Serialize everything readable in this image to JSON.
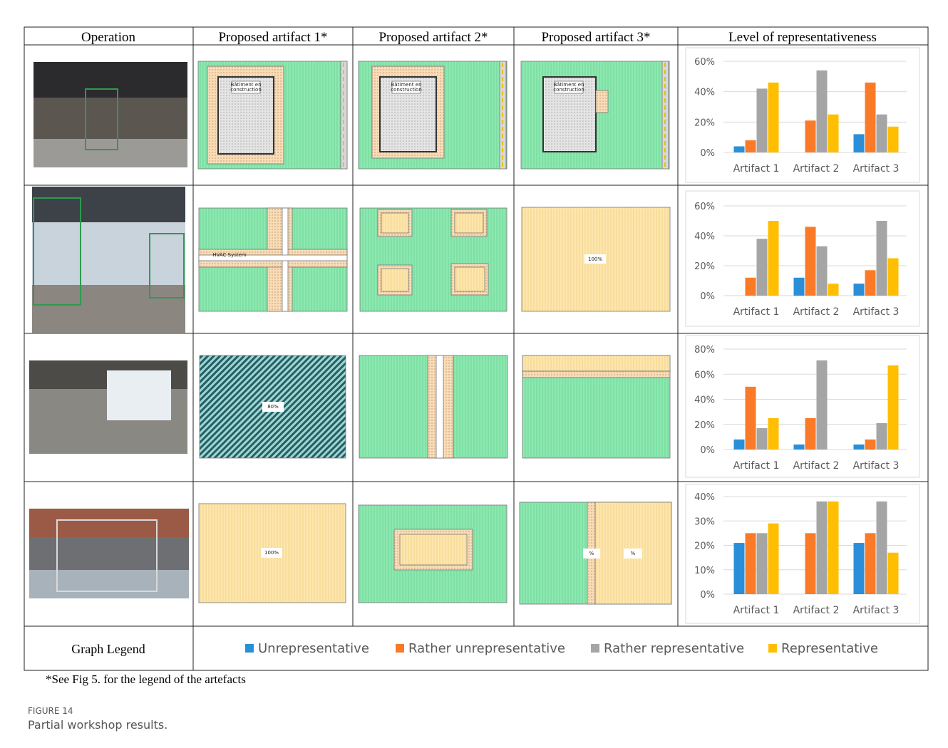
{
  "table": {
    "header": [
      "Operation",
      "Proposed artifact 1*",
      "Proposed artifact 2*",
      "Proposed artifact 3*",
      "Level of representativeness"
    ],
    "rows": [
      {
        "plans": [
          [
            "Bâtiment en",
            "construction"
          ],
          [
            "Bâtiment en",
            "construction"
          ],
          [
            "Bâtiment en",
            "construction"
          ]
        ]
      },
      {
        "plans": [
          [
            "HVAC System"
          ],
          [],
          [
            "100%"
          ]
        ]
      },
      {
        "plans": [
          [
            "80%"
          ],
          [],
          []
        ]
      },
      {
        "plans": [
          [
            "100%"
          ],
          [],
          [
            "%",
            "%"
          ]
        ]
      }
    ]
  },
  "legend": {
    "title": "Graph Legend",
    "items": [
      {
        "name": "Unrepresentative",
        "color": "#2a8fd8"
      },
      {
        "name": "Rather unrepresentative",
        "color": "#fb7a27"
      },
      {
        "name": "Rather representative",
        "color": "#a5a5a5"
      },
      {
        "name": "Representative",
        "color": "#ffbf00"
      }
    ]
  },
  "chart_data": [
    {
      "type": "bar",
      "categories": [
        "Artifact 1",
        "Artifact 2",
        "Artifact 3"
      ],
      "series": [
        {
          "values": [
            4,
            0,
            12
          ]
        },
        {
          "values": [
            8,
            21,
            46
          ]
        },
        {
          "values": [
            42,
            54,
            25
          ]
        },
        {
          "values": [
            46,
            25,
            17
          ]
        }
      ],
      "ylim": [
        0,
        60
      ],
      "yticks": [
        {
          "value": 0,
          "label": "0%"
        },
        {
          "value": 20,
          "label": "20%"
        },
        {
          "value": 40,
          "label": "40%"
        },
        {
          "value": 60,
          "label": "60%"
        }
      ],
      "grid": true
    },
    {
      "type": "bar",
      "categories": [
        "Artifact 1",
        "Artifact 2",
        "Artifact 3"
      ],
      "series": [
        {
          "values": [
            0,
            12,
            8
          ]
        },
        {
          "values": [
            12,
            46,
            17
          ]
        },
        {
          "values": [
            38,
            33,
            50
          ]
        },
        {
          "values": [
            50,
            8,
            25
          ]
        }
      ],
      "ylim": [
        0,
        60
      ],
      "yticks": [
        {
          "value": 0,
          "label": "0%"
        },
        {
          "value": 20,
          "label": "20%"
        },
        {
          "value": 40,
          "label": "40%"
        },
        {
          "value": 60,
          "label": "60%"
        }
      ],
      "grid": true
    },
    {
      "type": "bar",
      "categories": [
        "Artifact 1",
        "Artifact 2",
        "Artifact 3"
      ],
      "series": [
        {
          "values": [
            8,
            4,
            4
          ]
        },
        {
          "values": [
            50,
            25,
            8
          ]
        },
        {
          "values": [
            17,
            71,
            21
          ]
        },
        {
          "values": [
            25,
            0,
            67
          ]
        }
      ],
      "ylim": [
        0,
        80
      ],
      "yticks": [
        {
          "value": 0,
          "label": "0%"
        },
        {
          "value": 20,
          "label": "20%"
        },
        {
          "value": 40,
          "label": "40%"
        },
        {
          "value": 60,
          "label": "60%"
        },
        {
          "value": 80,
          "label": "80%"
        }
      ],
      "grid": true
    },
    {
      "type": "bar",
      "categories": [
        "Artifact 1",
        "Artifact 2",
        "Artifact 3"
      ],
      "series": [
        {
          "values": [
            21,
            0,
            21
          ]
        },
        {
          "values": [
            25,
            25,
            25
          ]
        },
        {
          "values": [
            25,
            38,
            38
          ]
        },
        {
          "values": [
            29,
            38,
            17
          ]
        }
      ],
      "ylim": [
        0,
        40
      ],
      "yticks": [
        {
          "value": 0,
          "label": "0%"
        },
        {
          "value": 10,
          "label": "10%"
        },
        {
          "value": 20,
          "label": "20%"
        },
        {
          "value": 30,
          "label": "30%"
        },
        {
          "value": 40,
          "label": "40%"
        }
      ],
      "grid": true
    }
  ],
  "footnote": "*See Fig 5. for the legend of the artefacts",
  "figure_label": "FIGURE 14",
  "caption": "Partial workshop results."
}
